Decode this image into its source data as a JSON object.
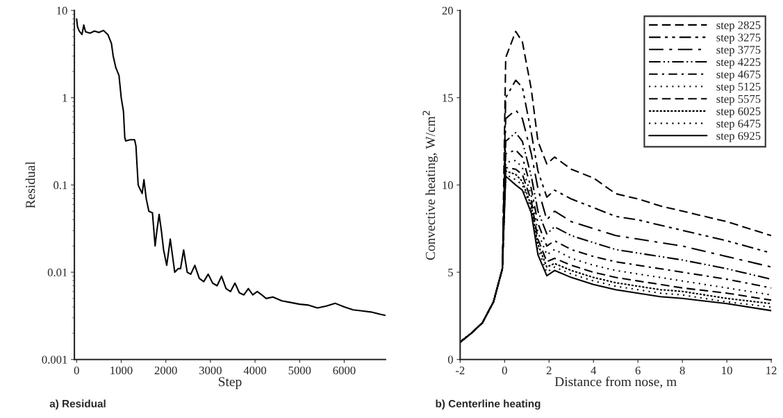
{
  "chart_data": [
    {
      "type": "line",
      "title": "a) Residual",
      "xlabel": "Step",
      "ylabel": "Residual",
      "log": "y",
      "x": [
        0,
        20,
        60,
        120,
        160,
        200,
        300,
        400,
        500,
        600,
        700,
        780,
        820,
        880,
        950,
        1000,
        1050,
        1080,
        1100,
        1200,
        1300,
        1330,
        1380,
        1420,
        1470,
        1510,
        1560,
        1620,
        1700,
        1760,
        1800,
        1850,
        1900,
        1950,
        2020,
        2100,
        2200,
        2280,
        2330,
        2400,
        2480,
        2560,
        2650,
        2750,
        2850,
        2950,
        3050,
        3150,
        3250,
        3350,
        3450,
        3550,
        3650,
        3750,
        3850,
        3950,
        4050,
        4150,
        4250,
        4400,
        4600,
        4800,
        5000,
        5200,
        5400,
        5600,
        5800,
        6000,
        6200,
        6400,
        6600,
        6800,
        6925
      ],
      "series": [
        {
          "color": "#000000",
          "values": [
            8,
            6.5,
            5.8,
            5.3,
            6.8,
            5.7,
            5.5,
            5.8,
            5.6,
            5.9,
            5.3,
            4.2,
            3.0,
            2.2,
            1.8,
            1.0,
            0.7,
            0.35,
            0.32,
            0.33,
            0.33,
            0.28,
            0.1,
            0.09,
            0.08,
            0.115,
            0.07,
            0.05,
            0.048,
            0.02,
            0.03,
            0.046,
            0.03,
            0.018,
            0.012,
            0.024,
            0.01,
            0.011,
            0.011,
            0.018,
            0.01,
            0.0095,
            0.012,
            0.0085,
            0.0078,
            0.0095,
            0.0075,
            0.007,
            0.009,
            0.0065,
            0.006,
            0.0075,
            0.0058,
            0.0055,
            0.0065,
            0.0055,
            0.006,
            0.0055,
            0.005,
            0.0052,
            0.0047,
            0.0045,
            0.0043,
            0.0042,
            0.0039,
            0.0041,
            0.0044,
            0.004,
            0.0037,
            0.0036,
            0.0035,
            0.0033,
            0.0032
          ],
          "line_style": "solid"
        }
      ],
      "xlim": [
        -50,
        6925
      ],
      "ylim": [
        0.001,
        10
      ],
      "xticks": [
        0,
        1000,
        2000,
        3000,
        4000,
        5000,
        6000
      ],
      "yticks": [
        10,
        1,
        0.1,
        0.01,
        0.001
      ],
      "grid": false,
      "legend": false
    },
    {
      "type": "line",
      "title": "b) Centerline heating",
      "xlabel": "Distance from nose, m",
      "ylabel": "Convective heating, W/cm$^{2}$",
      "x": [
        -2,
        -1.5,
        -1,
        -0.5,
        -0.1,
        0.05,
        0.5,
        0.8,
        1.2,
        1.5,
        1.9,
        2.25,
        3,
        4,
        5,
        6,
        7,
        8,
        10,
        12
      ],
      "series": [
        {
          "name": "step 2825",
          "color": "#000000",
          "line_style": "dashed",
          "values": [
            1.0,
            1.5,
            2.1,
            3.3,
            5.2,
            17.3,
            18.8,
            18.2,
            15.5,
            12.5,
            11.2,
            11.6,
            10.9,
            10.4,
            9.5,
            9.2,
            8.8,
            8.5,
            7.9,
            7.1
          ]
        },
        {
          "name": "step 3275",
          "color": "#000000",
          "line_style": "dashed",
          "values": [
            1.0,
            1.5,
            2.1,
            3.3,
            5.2,
            15.0,
            16.0,
            15.6,
            13.0,
            10.8,
            9.3,
            9.7,
            9.2,
            8.7,
            8.2,
            8.0,
            7.7,
            7.4,
            6.8,
            6.1
          ]
        },
        {
          "name": "step 3775",
          "color": "#000000",
          "line_style": "dashed",
          "values": [
            1.0,
            1.5,
            2.1,
            3.3,
            5.2,
            13.8,
            14.3,
            13.8,
            11.8,
            9.8,
            8.0,
            8.5,
            7.9,
            7.5,
            7.1,
            6.9,
            6.7,
            6.5,
            5.9,
            5.3
          ]
        },
        {
          "name": "step 4225",
          "color": "#000000",
          "line_style": "dashed",
          "values": [
            1.0,
            1.5,
            2.1,
            3.3,
            5.2,
            12.5,
            13.0,
            12.5,
            10.5,
            8.5,
            7.2,
            7.6,
            7.1,
            6.7,
            6.3,
            6.1,
            5.9,
            5.7,
            5.2,
            4.6
          ]
        },
        {
          "name": "step 4675",
          "color": "#000000",
          "line_style": "dashed",
          "values": [
            1.0,
            1.5,
            2.1,
            3.3,
            5.2,
            11.8,
            12.0,
            11.6,
            9.8,
            7.8,
            6.5,
            6.8,
            6.3,
            5.9,
            5.6,
            5.4,
            5.2,
            5.0,
            4.6,
            4.1
          ]
        },
        {
          "name": "step 5125",
          "color": "#000000",
          "line_style": "dotted",
          "values": [
            1.0,
            1.5,
            2.1,
            3.3,
            5.2,
            11.3,
            11.4,
            11.0,
            9.4,
            7.3,
            6.0,
            6.3,
            5.8,
            5.4,
            5.1,
            4.9,
            4.7,
            4.5,
            4.1,
            3.7
          ]
        },
        {
          "name": "step 5575",
          "color": "#000000",
          "line_style": "dashed",
          "values": [
            1.0,
            1.5,
            2.1,
            3.3,
            5.2,
            11.0,
            10.9,
            10.6,
            9.1,
            6.9,
            5.6,
            5.8,
            5.4,
            5.0,
            4.7,
            4.5,
            4.3,
            4.1,
            3.8,
            3.4
          ]
        },
        {
          "name": "step 6025",
          "color": "#000000",
          "line_style": "dotted",
          "values": [
            1.0,
            1.5,
            2.1,
            3.3,
            5.2,
            10.8,
            10.6,
            10.2,
            8.8,
            6.6,
            5.3,
            5.5,
            5.1,
            4.7,
            4.4,
            4.2,
            4.0,
            3.9,
            3.5,
            3.2
          ]
        },
        {
          "name": "step 6475",
          "color": "#000000",
          "line_style": "dotted",
          "values": [
            1.0,
            1.5,
            2.1,
            3.3,
            5.2,
            10.6,
            10.3,
            10.0,
            8.6,
            6.3,
            5.0,
            5.3,
            4.9,
            4.5,
            4.2,
            4.0,
            3.8,
            3.7,
            3.3,
            3.0
          ]
        },
        {
          "name": "step 6925",
          "color": "#000000",
          "line_style": "solid",
          "values": [
            1.0,
            1.5,
            2.1,
            3.3,
            5.2,
            10.5,
            10.0,
            9.7,
            8.4,
            6.0,
            4.8,
            5.1,
            4.7,
            4.3,
            4.0,
            3.8,
            3.6,
            3.5,
            3.2,
            2.8
          ]
        }
      ],
      "xlim": [
        -2,
        12
      ],
      "ylim": [
        0,
        20
      ],
      "xticks": [
        {
          "value": -2,
          "label": "-2"
        },
        0,
        2,
        4,
        6,
        8,
        10,
        12
      ],
      "yticks": [
        0,
        5,
        10,
        15,
        20
      ],
      "grid": false,
      "legend": "top right"
    }
  ]
}
